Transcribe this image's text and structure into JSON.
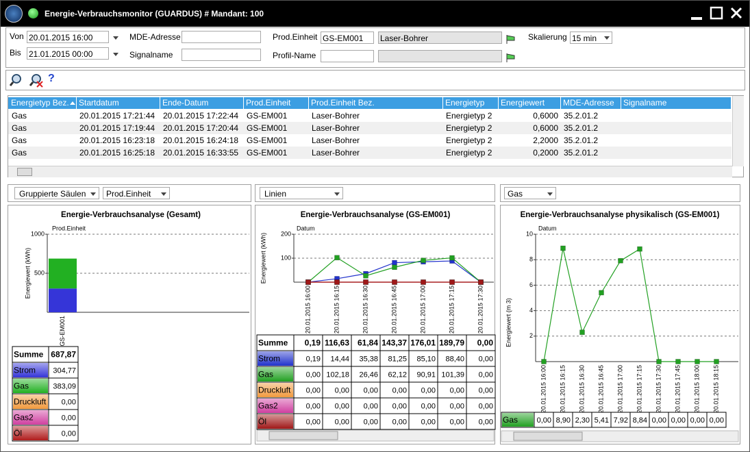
{
  "window": {
    "title": "Energie-Verbrauchsmonitor (GUARDUS) # Mandant: 100"
  },
  "filters": {
    "von_label": "Von",
    "von": "20.01.2015 16:00",
    "bis_label": "Bis",
    "bis": "21.01.2015 00:00",
    "mde_label": "MDE-Adresse",
    "signal_label": "Signalname",
    "prod_label": "Prod.Einheit",
    "prod_value": "GS-EM001",
    "prod_desc": "Laser-Bohrer",
    "profil_label": "Profil-Name",
    "skal_label": "Skalierung",
    "skal_value": "15 min"
  },
  "toolbar": {
    "help": "?"
  },
  "table": {
    "columns": [
      "Energietyp Bez.",
      "Startdatum",
      "Ende-Datum",
      "Prod.Einheit",
      "Prod.Einheit Bez.",
      "Energietyp",
      "Energiewert",
      "MDE-Adresse",
      "Signalname"
    ],
    "rows": [
      [
        "Gas",
        "20.01.2015 17:21:44",
        "20.01.2015 17:22:44",
        "GS-EM001",
        "Laser-Bohrer",
        "Energietyp 2",
        "0,6000",
        "35.2.01.2"
      ],
      [
        "Gas",
        "20.01.2015 17:19:44",
        "20.01.2015 17:20:44",
        "GS-EM001",
        "Laser-Bohrer",
        "Energietyp 2",
        "0,6000",
        "35.2.01.2"
      ],
      [
        "Gas",
        "20.01.2015 16:23:18",
        "20.01.2015 16:24:18",
        "GS-EM001",
        "Laser-Bohrer",
        "Energietyp 2",
        "2,2000",
        "35.2.01.2"
      ],
      [
        "Gas",
        "20.01.2015 16:25:18",
        "20.01.2015 16:33:55",
        "GS-EM001",
        "Laser-Bohrer",
        "Energietyp 2",
        "0,2000",
        "35.2.01.2"
      ]
    ]
  },
  "panels": [
    {
      "chart_type": "Gruppierte Säulen",
      "grouping": "Prod.Einheit"
    },
    {
      "chart_type": "Linien"
    },
    {
      "energy": "Gas"
    }
  ],
  "chart_data": [
    {
      "type": "bar",
      "stacked": true,
      "title": "Energie-Verbrauchsanalyse (Gesamt)",
      "x_label": "Prod.Einheit",
      "y_label": "Energiewert (kWh)",
      "categories": [
        "GS-EM001"
      ],
      "ylim": [
        0,
        1000
      ],
      "yticks": [
        500,
        1000
      ],
      "grid": true,
      "total_name": "Summe",
      "totals": [
        "687,87"
      ],
      "series": [
        {
          "name": "Strom",
          "color": "#3535d8",
          "values": [
            304.77
          ],
          "value_labels": [
            "304,77"
          ]
        },
        {
          "name": "Gas",
          "color": "#22b022",
          "values": [
            383.09
          ],
          "value_labels": [
            "383,09"
          ]
        },
        {
          "name": "Druckluft",
          "color": "#f29a3e",
          "values": [
            0
          ],
          "value_labels": [
            "0,00"
          ]
        },
        {
          "name": "Gas2",
          "color": "#d040a0",
          "values": [
            0
          ],
          "value_labels": [
            "0,00"
          ]
        },
        {
          "name": "Öl",
          "color": "#b01c1c",
          "values": [
            0
          ],
          "value_labels": [
            "0,00"
          ]
        }
      ]
    },
    {
      "type": "line",
      "title": "Energie-Verbrauchsanalyse (GS-EM001)",
      "x_label": "Datum",
      "y_label": "Energiewert (kWh)",
      "categories": [
        "20.01.2015 16:00",
        "20.01.2015 16:15",
        "20.01.2015 16:30",
        "20.01.2015 16:45",
        "20.01.2015 17:00",
        "20.01.2015 17:15",
        "20.01.2015 17:30"
      ],
      "ylim": [
        0,
        200
      ],
      "yticks": [
        100,
        200
      ],
      "grid": true,
      "total_name": "Summe",
      "totals": [
        "0,19",
        "116,63",
        "61,84",
        "143,37",
        "176,01",
        "189,79",
        "0,00"
      ],
      "series": [
        {
          "name": "Strom",
          "color": "#2233cc",
          "values": [
            0.19,
            14.44,
            35.38,
            81.25,
            85.1,
            88.4,
            0.0
          ],
          "value_labels": [
            "0,19",
            "14,44",
            "35,38",
            "81,25",
            "85,10",
            "88,40",
            "0,00"
          ]
        },
        {
          "name": "Gas",
          "color": "#22a022",
          "values": [
            0.0,
            102.18,
            26.46,
            62.12,
            90.91,
            101.39,
            0.0
          ],
          "value_labels": [
            "0,00",
            "102,18",
            "26,46",
            "62,12",
            "90,91",
            "101,39",
            "0,00"
          ]
        },
        {
          "name": "Druckluft",
          "color": "#f29a3e",
          "values": [
            0,
            0,
            0,
            0,
            0,
            0,
            0
          ],
          "value_labels": [
            "0,00",
            "0,00",
            "0,00",
            "0,00",
            "0,00",
            "0,00",
            "0,00"
          ]
        },
        {
          "name": "Gas2",
          "color": "#d040a0",
          "values": [
            0,
            0,
            0,
            0,
            0,
            0,
            0
          ],
          "value_labels": [
            "0,00",
            "0,00",
            "0,00",
            "0,00",
            "0,00",
            "0,00",
            "0,00"
          ]
        },
        {
          "name": "Öl",
          "color": "#a01818",
          "values": [
            0,
            0,
            0,
            0,
            0,
            0,
            0
          ],
          "value_labels": [
            "0,00",
            "0,00",
            "0,00",
            "0,00",
            "0,00",
            "0,00",
            "0,00"
          ]
        }
      ]
    },
    {
      "type": "line",
      "title": "Energie-Verbrauchsanalyse physikalisch (GS-EM001)",
      "x_label": "Datum",
      "y_label": "Energiewert (m 3)",
      "categories": [
        "20.01.2015 16:00",
        "20.01.2015 16:15",
        "20.01.2015 16:30",
        "20.01.2015 16:45",
        "20.01.2015 17:00",
        "20.01.2015 17:15",
        "20.01.2015 17:30",
        "20.01.2015 17:45",
        "20.01.2015 18:00",
        "20.01.2015 18:15"
      ],
      "ylim": [
        0,
        10
      ],
      "yticks": [
        2,
        4,
        6,
        8,
        10
      ],
      "grid": true,
      "series": [
        {
          "name": "Gas",
          "color": "#22a022",
          "values": [
            0.0,
            8.9,
            2.3,
            5.41,
            7.92,
            8.84,
            0.0,
            0.0,
            0.0,
            0.0
          ],
          "value_labels": [
            "0,00",
            "8,90",
            "2,30",
            "5,41",
            "7,92",
            "8,84",
            "0,00",
            "0,00",
            "0,00",
            "0,00"
          ]
        }
      ]
    }
  ]
}
